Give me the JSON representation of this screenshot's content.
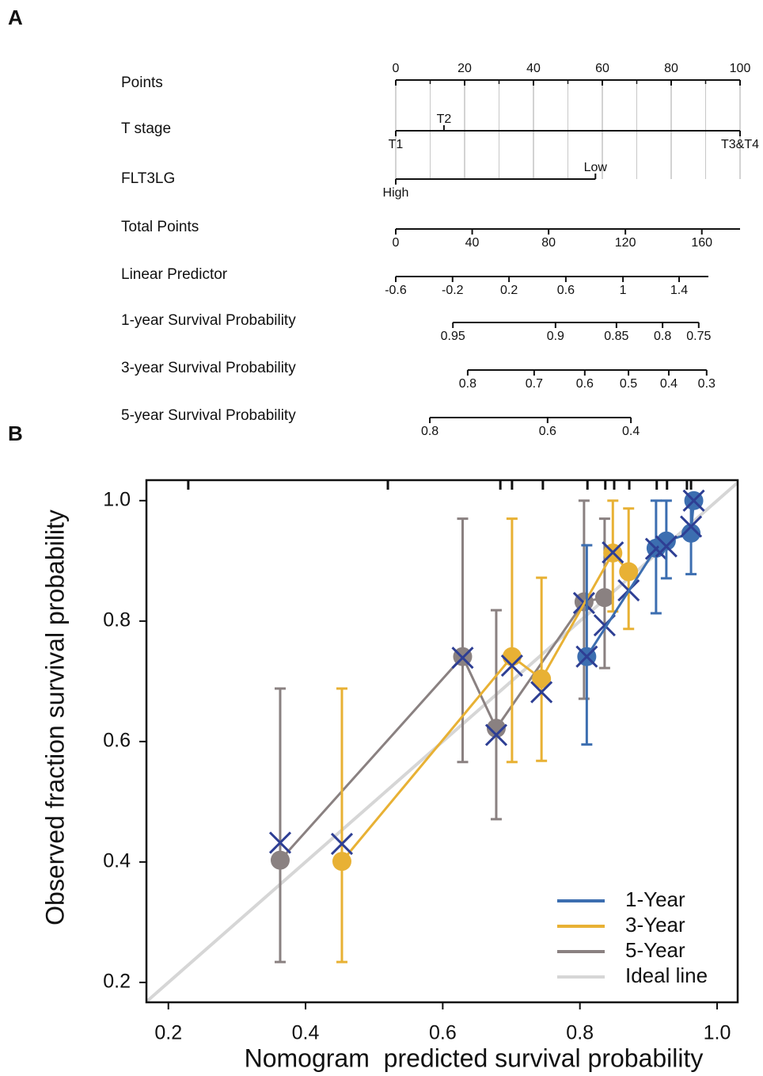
{
  "chart_data": [
    {
      "type": "nomogram",
      "panel_label": "A",
      "scales": [
        {
          "label": "Points",
          "span": [
            0,
            100
          ],
          "minor_points": [
            10,
            30,
            50,
            70,
            90
          ],
          "ticks": [
            {
              "label": "0",
              "points": 0
            },
            {
              "label": "20",
              "points": 20
            },
            {
              "label": "40",
              "points": 40
            },
            {
              "label": "60",
              "points": 60
            },
            {
              "label": "80",
              "points": 80
            },
            {
              "label": "100",
              "points": 100
            }
          ]
        },
        {
          "label": "T stage",
          "span": [
            0,
            100
          ],
          "ticks": [
            {
              "label": "T1",
              "points": 0
            },
            {
              "label": "T2",
              "points": 14
            },
            {
              "label": "T3&T4",
              "points": 100
            }
          ]
        },
        {
          "label": "FLT3LG",
          "span": [
            0,
            58
          ],
          "ticks": [
            {
              "label": "High",
              "points": 0
            },
            {
              "label": "Low",
              "points": 58
            }
          ]
        },
        {
          "label": "Total Points",
          "span": [
            0,
            100
          ],
          "ticks": [
            {
              "label": "0",
              "points": 0
            },
            {
              "label": "40",
              "points": 22.2
            },
            {
              "label": "80",
              "points": 44.4
            },
            {
              "label": "120",
              "points": 66.7
            },
            {
              "label": "160",
              "points": 88.9
            }
          ]
        },
        {
          "label": "Linear Predictor",
          "span": [
            0,
            90.8
          ],
          "ticks": [
            {
              "label": "-0.6",
              "points": 0
            },
            {
              "label": "-0.2",
              "points": 16.5
            },
            {
              "label": "0.2",
              "points": 32.9
            },
            {
              "label": "0.6",
              "points": 49.4
            },
            {
              "label": "1",
              "points": 66
            },
            {
              "label": "1.4",
              "points": 82.3
            }
          ]
        },
        {
          "label": "1-year Survival Probability",
          "span": [
            16.6,
            88
          ],
          "ticks": [
            {
              "label": "0.95",
              "points": 16.6
            },
            {
              "label": "0.9",
              "points": 46.4
            },
            {
              "label": "0.85",
              "points": 64.1
            },
            {
              "label": "0.8",
              "points": 77.5
            },
            {
              "label": "0.75",
              "points": 88
            }
          ]
        },
        {
          "label": "3-year Survival Probability",
          "span": [
            20.9,
            90.3
          ],
          "ticks": [
            {
              "label": "0.8",
              "points": 20.9
            },
            {
              "label": "0.7",
              "points": 40.2
            },
            {
              "label": "0.6",
              "points": 54.9
            },
            {
              "label": "0.5",
              "points": 67.6
            },
            {
              "label": "0.4",
              "points": 79.3
            },
            {
              "label": "0.3",
              "points": 90.3
            }
          ]
        },
        {
          "label": "5-year Survival Probability",
          "span": [
            9.9,
            68.3
          ],
          "ticks": [
            {
              "label": "0.8",
              "points": 9.9
            },
            {
              "label": "0.6",
              "points": 44.1
            },
            {
              "label": "0.4",
              "points": 68.3
            }
          ]
        }
      ]
    },
    {
      "type": "calibration",
      "panel_label": "B",
      "x_label": "Nomogram  predicted survival probability",
      "y_label": "Observed fraction survival probability",
      "xlim": [
        0.168,
        1.03
      ],
      "ylim": [
        0.167,
        1.034
      ],
      "xticks": [
        0.2,
        0.4,
        0.6,
        0.8,
        {
          "value": 1,
          "label": "1.0"
        }
      ],
      "yticks": [
        0.2,
        0.4,
        0.6,
        0.8,
        {
          "value": 1,
          "label": "1.0"
        }
      ],
      "rug": [
        0.229,
        0.52,
        0.684,
        0.701,
        0.746,
        0.811,
        0.837,
        0.85,
        0.872,
        0.912,
        0.927,
        0.956,
        0.962
      ],
      "corrected_color": "#2e3f94",
      "ideal": {
        "name": "Ideal line",
        "color": "#d6d6d6"
      },
      "legend": "bottom-right",
      "series": [
        {
          "name": "1-Year",
          "color": "#3c6eb0",
          "x": [
            0.81,
            0.911,
            0.926,
            0.962,
            0.966
          ],
          "values": [
            0.741,
            0.921,
            0.933,
            0.946,
            1.0
          ],
          "lower": [
            0.595,
            0.813,
            0.871,
            0.878,
            1.0
          ],
          "upper": [
            0.926,
            1.0,
            1.0,
            1.0,
            1.0
          ],
          "corrected": [
            0.741,
            0.92,
            0.924,
            0.957,
            1.0
          ]
        },
        {
          "name": "3-Year",
          "color": "#e8b134",
          "x": [
            0.453,
            0.701,
            0.744,
            0.848,
            0.871
          ],
          "values": [
            0.401,
            0.741,
            0.704,
            0.913,
            0.882
          ],
          "lower": [
            0.234,
            0.566,
            0.568,
            0.816,
            0.787
          ],
          "upper": [
            0.688,
            0.97,
            0.872,
            1.0,
            0.987
          ],
          "corrected": [
            0.43,
            0.726,
            0.682,
            0.914,
            0.851
          ]
        },
        {
          "name": "5-Year",
          "color": "#8a8181",
          "x": [
            0.363,
            0.629,
            0.678,
            0.806,
            0.836
          ],
          "values": [
            0.403,
            0.741,
            0.622,
            0.832,
            0.839
          ],
          "lower": [
            0.234,
            0.566,
            0.471,
            0.671,
            0.722
          ],
          "upper": [
            0.688,
            0.97,
            0.818,
            1.0,
            0.97
          ],
          "corrected": [
            0.432,
            0.739,
            0.611,
            0.83,
            0.793
          ]
        }
      ]
    }
  ]
}
